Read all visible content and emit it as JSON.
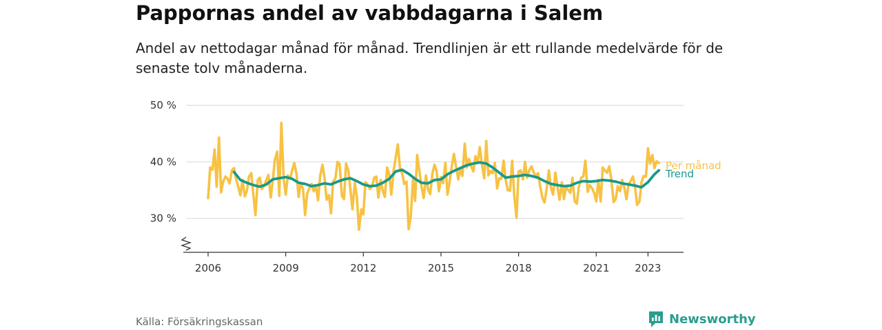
{
  "title": "Pappornas andel av vabbdagarna i Salem",
  "subtitle": "Andel av nettodagar månad för månad. Trendlinjen är ett rullande medelvärde för de senaste tolv månaderna.",
  "source": "Källa: Försäkringskassan",
  "brand": {
    "name": "Newsworthy",
    "icon": "newsworthy-chart-icon",
    "color": "#2a9d8f"
  },
  "colors": {
    "monthly": "#f7c244",
    "trend": "#18998a",
    "grid": "#dddddd",
    "axis": "#333333"
  },
  "chart_data": {
    "type": "line",
    "x_axis": {
      "ticks": [
        2006,
        2009,
        2012,
        2015,
        2018,
        2021,
        2023
      ],
      "range": [
        2006.0,
        2024.8
      ],
      "unit": "year"
    },
    "y_axis": {
      "ticks": [
        30,
        40,
        50
      ],
      "tick_labels": [
        "30 %",
        "40 %",
        "50 %"
      ],
      "range": [
        24,
        51
      ],
      "broken_axis": true
    },
    "grid": "horizontal",
    "legend": "direct labels at line ends",
    "series": [
      {
        "name": "Per månad",
        "x": [
          2006.0,
          2006.08,
          2006.17,
          2006.25,
          2006.33,
          2006.42,
          2006.5,
          2006.58,
          2006.67,
          2006.75,
          2006.83,
          2006.92,
          2007.0,
          2007.08,
          2007.17,
          2007.25,
          2007.33,
          2007.42,
          2007.5,
          2007.58,
          2007.67,
          2007.75,
          2007.83,
          2007.92,
          2008.0,
          2008.08,
          2008.17,
          2008.25,
          2008.33,
          2008.42,
          2008.5,
          2008.58,
          2008.67,
          2008.75,
          2008.83,
          2008.92,
          2009.0,
          2009.08,
          2009.17,
          2009.25,
          2009.33,
          2009.42,
          2009.5,
          2009.58,
          2009.67,
          2009.75,
          2009.83,
          2009.92,
          2010.0,
          2010.08,
          2010.17,
          2010.25,
          2010.33,
          2010.42,
          2010.5,
          2010.58,
          2010.67,
          2010.75,
          2010.83,
          2010.92,
          2011.0,
          2011.08,
          2011.17,
          2011.25,
          2011.33,
          2011.42,
          2011.5,
          2011.58,
          2011.67,
          2011.75,
          2011.83,
          2011.92,
          2012.0,
          2012.08,
          2012.17,
          2012.25,
          2012.33,
          2012.42,
          2012.5,
          2012.58,
          2012.67,
          2012.75,
          2012.83,
          2012.92,
          2013.0,
          2013.08,
          2013.17,
          2013.25,
          2013.33,
          2013.42,
          2013.5,
          2013.58,
          2013.67,
          2013.75,
          2013.83,
          2013.92,
          2014.0,
          2014.08,
          2014.17,
          2014.25,
          2014.33,
          2014.42,
          2014.5,
          2014.58,
          2014.67,
          2014.75,
          2014.83,
          2014.92,
          2015.0,
          2015.08,
          2015.17,
          2015.25,
          2015.33,
          2015.42,
          2015.5,
          2015.58,
          2015.67,
          2015.75,
          2015.83,
          2015.92,
          2016.0,
          2016.08,
          2016.17,
          2016.25,
          2016.33,
          2016.42,
          2016.5,
          2016.58,
          2016.67,
          2016.75,
          2016.83,
          2016.92,
          2017.0,
          2017.08,
          2017.17,
          2017.25,
          2017.33,
          2017.42,
          2017.5,
          2017.58,
          2017.67,
          2017.75,
          2017.83,
          2017.92,
          2018.0,
          2018.08,
          2018.17,
          2018.25,
          2018.33,
          2018.42,
          2018.5,
          2018.58,
          2018.67,
          2018.75,
          2018.83,
          2018.92,
          2019.0,
          2019.08,
          2019.17,
          2019.25,
          2019.33,
          2019.42,
          2019.5,
          2019.58,
          2019.67,
          2019.75,
          2019.83,
          2019.92,
          2020.0,
          2020.08,
          2020.17,
          2020.25,
          2020.33,
          2020.42,
          2020.5,
          2020.58,
          2020.67,
          2020.75,
          2020.83,
          2020.92,
          2021.0,
          2021.08,
          2021.17,
          2021.25,
          2021.33,
          2021.42,
          2021.5,
          2021.58,
          2021.67,
          2021.75,
          2021.83,
          2021.92,
          2022.0,
          2022.08,
          2022.17,
          2022.25,
          2022.33,
          2022.42,
          2022.5,
          2022.58,
          2022.67,
          2022.75,
          2022.83,
          2022.92,
          2023.0,
          2023.08,
          2023.17,
          2023.25,
          2023.33,
          2023.42
        ],
        "values": [
          33.6,
          39.0,
          38.6,
          42.2,
          35.6,
          44.3,
          34.6,
          36.5,
          37.4,
          37.0,
          36.2,
          38.5,
          38.9,
          37.0,
          35.5,
          34.1,
          36.8,
          33.9,
          34.9,
          37.4,
          38.0,
          34.2,
          30.6,
          36.8,
          37.2,
          35.2,
          35.8,
          36.8,
          37.7,
          33.7,
          36.7,
          40.4,
          41.8,
          34.0,
          46.9,
          37.0,
          34.2,
          37.6,
          37.0,
          38.5,
          39.8,
          37.8,
          33.8,
          36.3,
          35.2,
          30.6,
          34.4,
          35.4,
          36.1,
          34.8,
          35.6,
          33.2,
          37.5,
          39.5,
          37.2,
          33.3,
          34.1,
          30.9,
          36.5,
          37.1,
          40.0,
          39.6,
          34.0,
          33.4,
          39.7,
          38.5,
          35.1,
          31.6,
          36.3,
          33.8,
          28.0,
          31.6,
          30.7,
          36.4,
          36.0,
          35.2,
          35.6,
          37.2,
          37.4,
          33.7,
          36.8,
          34.9,
          33.8,
          39.0,
          37.7,
          34.2,
          38.5,
          40.8,
          43.1,
          38.7,
          38.0,
          36.1,
          36.5,
          28.1,
          30.2,
          36.9,
          33.1,
          41.2,
          38.2,
          35.6,
          33.6,
          37.6,
          35.1,
          34.3,
          38.0,
          39.5,
          38.3,
          34.8,
          37.3,
          36.2,
          39.8,
          34.2,
          36.4,
          39.4,
          41.4,
          39.2,
          36.9,
          38.8,
          37.5,
          43.2,
          39.0,
          40.5,
          39.2,
          38.3,
          41.0,
          40.0,
          42.6,
          39.6,
          37.1,
          43.7,
          37.6,
          38.4,
          38.0,
          39.8,
          35.3,
          37.1,
          37.0,
          40.2,
          36.8,
          35.0,
          34.9,
          40.2,
          34.1,
          30.1,
          38.3,
          38.5,
          36.9,
          40.0,
          37.2,
          38.6,
          39.2,
          38.2,
          37.4,
          38.0,
          35.8,
          33.6,
          32.8,
          35.1,
          38.5,
          35.4,
          34.2,
          38.1,
          35.6,
          33.3,
          36.4,
          33.4,
          35.7,
          35.0,
          34.5,
          37.2,
          33.0,
          32.6,
          35.6,
          37.2,
          37.4,
          40.2,
          34.7,
          35.9,
          35.4,
          34.5,
          33.0,
          36.8,
          33.0,
          39.0,
          38.5,
          38.1,
          39.2,
          37.0,
          32.9,
          33.4,
          35.7,
          34.8,
          36.8,
          35.5,
          33.4,
          36.0,
          36.6,
          37.4,
          35.6,
          32.4,
          33.0,
          36.4,
          37.5,
          37.4,
          42.4,
          39.7,
          41.2,
          38.9,
          40.1,
          39.8
        ]
      },
      {
        "name": "Trend",
        "x": [
          2007.0,
          2007.25,
          2007.5,
          2007.75,
          2008.0,
          2008.25,
          2008.5,
          2008.75,
          2009.0,
          2009.25,
          2009.5,
          2009.75,
          2010.0,
          2010.25,
          2010.5,
          2010.75,
          2011.0,
          2011.25,
          2011.5,
          2011.75,
          2012.0,
          2012.25,
          2012.5,
          2012.75,
          2013.0,
          2013.25,
          2013.5,
          2013.75,
          2014.0,
          2014.25,
          2014.5,
          2014.75,
          2015.0,
          2015.25,
          2015.5,
          2015.75,
          2016.0,
          2016.25,
          2016.5,
          2016.75,
          2017.0,
          2017.25,
          2017.5,
          2017.75,
          2018.0,
          2018.25,
          2018.5,
          2018.75,
          2019.0,
          2019.25,
          2019.5,
          2019.75,
          2020.0,
          2020.25,
          2020.5,
          2020.75,
          2021.0,
          2021.25,
          2021.5,
          2021.75,
          2022.0,
          2022.25,
          2022.5,
          2022.75,
          2023.0,
          2023.25,
          2023.42
        ],
        "values": [
          38.2,
          36.8,
          36.3,
          35.9,
          35.6,
          36.0,
          36.9,
          37.1,
          37.3,
          37.0,
          36.3,
          36.1,
          35.7,
          35.9,
          36.2,
          36.0,
          36.5,
          36.9,
          37.1,
          36.6,
          36.0,
          35.7,
          35.8,
          36.3,
          37.0,
          38.3,
          38.6,
          37.9,
          37.0,
          36.3,
          36.2,
          36.8,
          36.9,
          37.8,
          38.4,
          38.9,
          39.4,
          39.7,
          39.9,
          39.7,
          39.0,
          38.1,
          37.2,
          37.4,
          37.5,
          37.7,
          37.5,
          37.2,
          36.6,
          36.1,
          35.9,
          35.7,
          35.8,
          36.3,
          36.6,
          36.5,
          36.6,
          36.8,
          36.7,
          36.5,
          36.2,
          36.0,
          35.8,
          35.5,
          36.4,
          37.8,
          38.5
        ]
      }
    ]
  }
}
